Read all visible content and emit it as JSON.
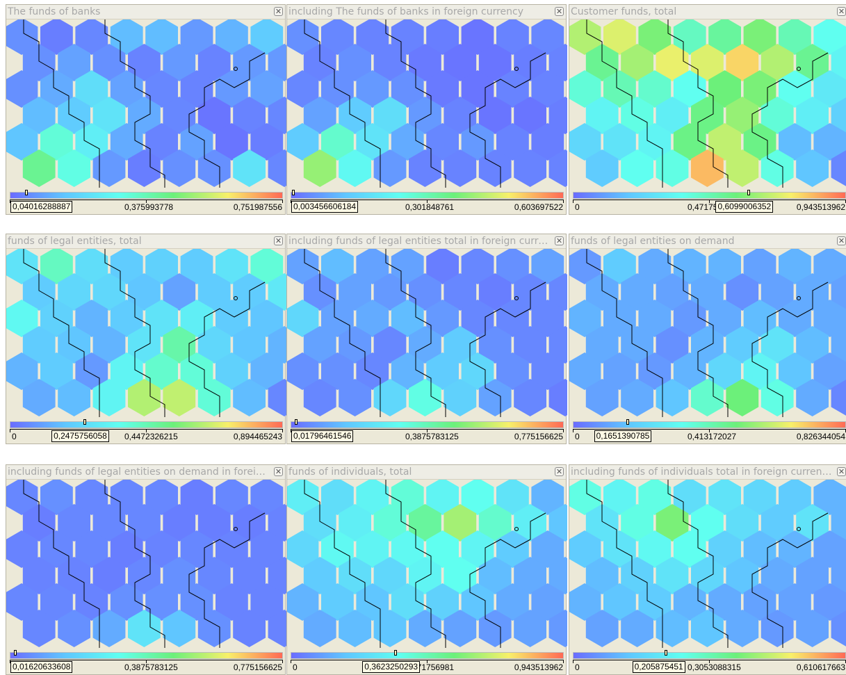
{
  "colors": {
    "gradient": [
      "#6a6cff",
      "#60c6ff",
      "#60fff0",
      "#6cf07a",
      "#f8f06a",
      "#ff6a55"
    ],
    "boundary": "#000000"
  },
  "panels": [
    {
      "title": "The funds of banks",
      "close_icon": "close-icon",
      "scale": {
        "min": "0,04016288887",
        "mid": "0,375993778",
        "max": "0,751987556"
      },
      "current_value": "0,04016288887",
      "marker_fraction": 0.06,
      "cells": [
        [
          0.08,
          0.04,
          0.06,
          0.18,
          0.18,
          0.1,
          0.16,
          0.22
        ],
        [
          0.08,
          0.12,
          0.08,
          0.05,
          0.1,
          0.05,
          0.1,
          0.1
        ],
        [
          0.08,
          0.14,
          0.28,
          0.12,
          0.06,
          0.05,
          0.1,
          0.12
        ],
        [
          0.18,
          0.22,
          0.3,
          0.14,
          0.06,
          0.02,
          0.05,
          0.06
        ],
        [
          0.2,
          0.44,
          0.34,
          0.14,
          0.05,
          0.12,
          0.02,
          0.04
        ],
        [
          0.56,
          0.42,
          0.1,
          0.04,
          0.08,
          0.08,
          0.3,
          0.06
        ]
      ]
    },
    {
      "title": "including The funds of banks in foreign currency",
      "close_icon": "close-icon",
      "scale": {
        "min": "0,003456606184",
        "mid": "0,301848761",
        "max": "0,603697522"
      },
      "current_value": "0,003456606184",
      "marker_fraction": 0.01,
      "cells": [
        [
          0.08,
          0.06,
          0.05,
          0.05,
          0.04,
          0.02,
          0.05,
          0.06
        ],
        [
          0.05,
          0.08,
          0.05,
          0.03,
          0.02,
          0.02,
          0.04,
          0.05
        ],
        [
          0.06,
          0.08,
          0.1,
          0.08,
          0.03,
          0.02,
          0.05,
          0.05
        ],
        [
          0.12,
          0.22,
          0.28,
          0.1,
          0.05,
          0.02,
          0.02,
          0.04
        ],
        [
          0.22,
          0.46,
          0.3,
          0.14,
          0.06,
          0.1,
          0.05,
          0.04
        ],
        [
          0.66,
          0.38,
          0.1,
          0.05,
          0.05,
          0.05,
          0.05,
          0.05
        ]
      ]
    },
    {
      "title": "Customer funds, total",
      "close_icon": "close-icon",
      "scale": {
        "min": "0",
        "mid": "0,47175",
        "max": "0,943513962"
      },
      "current_value": "0,6099006352",
      "marker_fraction": 0.645,
      "cells": [
        [
          0.7,
          0.76,
          0.62,
          0.48,
          0.54,
          0.62,
          0.5,
          0.4
        ],
        [
          0.56,
          0.68,
          0.78,
          0.76,
          0.84,
          0.7,
          0.56,
          0.36
        ],
        [
          0.44,
          0.5,
          0.46,
          0.4,
          0.6,
          0.62,
          0.4,
          0.32
        ],
        [
          0.36,
          0.42,
          0.34,
          0.58,
          0.66,
          0.44,
          0.34,
          0.24
        ],
        [
          0.26,
          0.3,
          0.36,
          0.58,
          0.72,
          0.58,
          0.18,
          0.16
        ],
        [
          0.22,
          0.4,
          0.42,
          0.88,
          0.72,
          0.42,
          0.2,
          0.06
        ]
      ]
    },
    {
      "title": "funds of legal entities, total",
      "close_icon": "close-icon",
      "scale": {
        "min": "0",
        "mid": "0,4472326215",
        "max": "0,894465243"
      },
      "current_value": "0,2475756058",
      "marker_fraction": 0.275,
      "cells": [
        [
          0.3,
          0.48,
          0.28,
          0.22,
          0.24,
          0.22,
          0.3,
          0.44
        ],
        [
          0.22,
          0.26,
          0.26,
          0.2,
          0.12,
          0.22,
          0.22,
          0.32
        ],
        [
          0.38,
          0.24,
          0.16,
          0.22,
          0.3,
          0.34,
          0.22,
          0.2
        ],
        [
          0.22,
          0.2,
          0.16,
          0.3,
          0.52,
          0.26,
          0.2,
          0.16
        ],
        [
          0.16,
          0.22,
          0.1,
          0.36,
          0.46,
          0.44,
          0.24,
          0.16
        ],
        [
          0.14,
          0.18,
          0.36,
          0.7,
          0.72,
          0.44,
          0.18,
          0.06
        ]
      ]
    },
    {
      "title": "including funds of legal entities total in foreign currency",
      "close_icon": "close-icon",
      "scale": {
        "min": "0,01796461546",
        "mid": "0,3875783125",
        "max": "0,775156625"
      },
      "current_value": "0,01796461546",
      "marker_fraction": 0.02,
      "cells": [
        [
          0.12,
          0.18,
          0.12,
          0.12,
          0.04,
          0.06,
          0.08,
          0.12
        ],
        [
          0.08,
          0.12,
          0.1,
          0.08,
          0.06,
          0.04,
          0.06,
          0.06
        ],
        [
          0.26,
          0.12,
          0.14,
          0.18,
          0.1,
          0.06,
          0.06,
          0.06
        ],
        [
          0.12,
          0.1,
          0.06,
          0.14,
          0.22,
          0.08,
          0.06,
          0.06
        ],
        [
          0.08,
          0.08,
          0.06,
          0.16,
          0.22,
          0.26,
          0.08,
          0.06
        ],
        [
          0.06,
          0.08,
          0.26,
          0.42,
          0.24,
          0.12,
          0.06,
          0.04
        ]
      ]
    },
    {
      "title": "funds of legal entities on demand",
      "close_icon": "close-icon",
      "scale": {
        "min": "0",
        "mid": "0,413172027",
        "max": "0,826344054"
      },
      "current_value": "0,1651390785",
      "marker_fraction": 0.2,
      "cells": [
        [
          0.1,
          0.22,
          0.14,
          0.16,
          0.16,
          0.12,
          0.16,
          0.14
        ],
        [
          0.14,
          0.14,
          0.12,
          0.14,
          0.08,
          0.12,
          0.14,
          0.12
        ],
        [
          0.16,
          0.14,
          0.14,
          0.1,
          0.14,
          0.18,
          0.14,
          0.14
        ],
        [
          0.14,
          0.14,
          0.08,
          0.16,
          0.22,
          0.3,
          0.18,
          0.14
        ],
        [
          0.14,
          0.12,
          0.1,
          0.16,
          0.26,
          0.36,
          0.2,
          0.12
        ],
        [
          0.12,
          0.14,
          0.2,
          0.46,
          0.6,
          0.42,
          0.14,
          0.06
        ]
      ]
    },
    {
      "title": "including funds of legal entities on demand in foreign currency",
      "close_icon": "close-icon",
      "scale": {
        "min": "0,01620633608",
        "mid": "0,3875783125",
        "max": "0,775156625"
      },
      "current_value": "0,01620633608",
      "marker_fraction": 0.02,
      "cells": [
        [
          0.06,
          0.08,
          0.06,
          0.06,
          0.06,
          0.04,
          0.06,
          0.06
        ],
        [
          0.04,
          0.06,
          0.06,
          0.06,
          0.04,
          0.04,
          0.04,
          0.05
        ],
        [
          0.05,
          0.06,
          0.06,
          0.04,
          0.05,
          0.06,
          0.05,
          0.05
        ],
        [
          0.05,
          0.05,
          0.04,
          0.06,
          0.08,
          0.06,
          0.05,
          0.05
        ],
        [
          0.06,
          0.06,
          0.05,
          0.08,
          0.08,
          0.08,
          0.05,
          0.05
        ],
        [
          0.06,
          0.08,
          0.14,
          0.3,
          0.2,
          0.08,
          0.05,
          0.05
        ]
      ]
    },
    {
      "title": "funds of individuals, total",
      "close_icon": "close-icon",
      "scale": {
        "min": "0",
        "mid": "0,471756981",
        "max": "0,943513962"
      },
      "current_value": "0,3623250293",
      "marker_fraction": 0.385,
      "cells": [
        [
          0.34,
          0.28,
          0.36,
          0.44,
          0.36,
          0.4,
          0.3,
          0.16
        ],
        [
          0.28,
          0.34,
          0.44,
          0.54,
          0.68,
          0.46,
          0.34,
          0.2
        ],
        [
          0.26,
          0.38,
          0.36,
          0.38,
          0.4,
          0.36,
          0.22,
          0.14
        ],
        [
          0.22,
          0.28,
          0.26,
          0.36,
          0.4,
          0.18,
          0.14,
          0.14
        ],
        [
          0.16,
          0.22,
          0.2,
          0.28,
          0.24,
          0.2,
          0.14,
          0.12
        ],
        [
          0.14,
          0.18,
          0.2,
          0.14,
          0.12,
          0.1,
          0.12,
          0.1
        ]
      ]
    },
    {
      "title": "including funds of individuals total in foreign currency",
      "close_icon": "close-icon",
      "scale": {
        "min": "0",
        "mid": "0,3053088315",
        "max": "0,610617663"
      },
      "current_value": "0,205875451",
      "marker_fraction": 0.34,
      "cells": [
        [
          0.42,
          0.36,
          0.42,
          0.28,
          0.3,
          0.26,
          0.22,
          0.16
        ],
        [
          0.3,
          0.42,
          0.62,
          0.4,
          0.28,
          0.22,
          0.3,
          0.16
        ],
        [
          0.22,
          0.3,
          0.38,
          0.4,
          0.24,
          0.18,
          0.16,
          0.12
        ],
        [
          0.18,
          0.24,
          0.3,
          0.26,
          0.2,
          0.14,
          0.12,
          0.12
        ],
        [
          0.16,
          0.2,
          0.22,
          0.16,
          0.14,
          0.12,
          0.12,
          0.1
        ],
        [
          0.12,
          0.14,
          0.18,
          0.2,
          0.14,
          0.1,
          0.12,
          0.08
        ]
      ]
    }
  ]
}
